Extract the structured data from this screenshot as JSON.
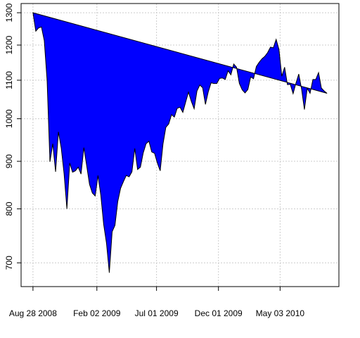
{
  "chart_data": {
    "type": "area",
    "closed_polygon": true,
    "color": "#0000ff",
    "edge_color": "#000000",
    "log_y": true,
    "grid": true,
    "values": [
      1300,
      1242,
      1252,
      1255,
      1213,
      1099,
      899,
      940,
      877,
      968,
      930,
      873,
      800,
      896,
      876,
      879,
      887,
      872,
      931,
      890,
      850,
      832,
      826,
      869,
      827,
      770,
      735,
      683,
      756,
      768,
      815,
      842,
      856,
      869,
      866,
      877,
      929,
      882,
      887,
      919,
      940,
      946,
      921,
      918,
      896,
      879,
      940,
      979,
      987,
      1010,
      1004,
      1026,
      1029,
      1016,
      1042,
      1068,
      1044,
      1025,
      1071,
      1087,
      1080,
      1036,
      1069,
      1093,
      1091,
      1091,
      1105,
      1106,
      1102,
      1126,
      1115,
      1145,
      1136,
      1091,
      1074,
      1066,
      1075,
      1109,
      1104,
      1138,
      1150,
      1160,
      1167,
      1178,
      1194,
      1192,
      1217,
      1187,
      1111,
      1136,
      1088,
      1089,
      1064,
      1092,
      1117,
      1076,
      1023,
      1078,
      1065,
      1102,
      1102,
      1121,
      1079,
      1071,
      1065
    ],
    "xlim": [
      -4.2,
      108.2
    ],
    "xticks": [
      {
        "value": 0,
        "label": "Aug 28 2008"
      },
      {
        "value": 22.6,
        "label": "Feb 02 2009"
      },
      {
        "value": 43.7,
        "label": "Jul 01 2009"
      },
      {
        "value": 65.6,
        "label": "Dec 01 2009"
      },
      {
        "value": 87.4,
        "label": "May 03 2010"
      }
    ],
    "ylim": [
      660,
      1330
    ],
    "yticks": [
      700,
      800,
      900,
      1000,
      1100,
      1200,
      1300
    ]
  }
}
